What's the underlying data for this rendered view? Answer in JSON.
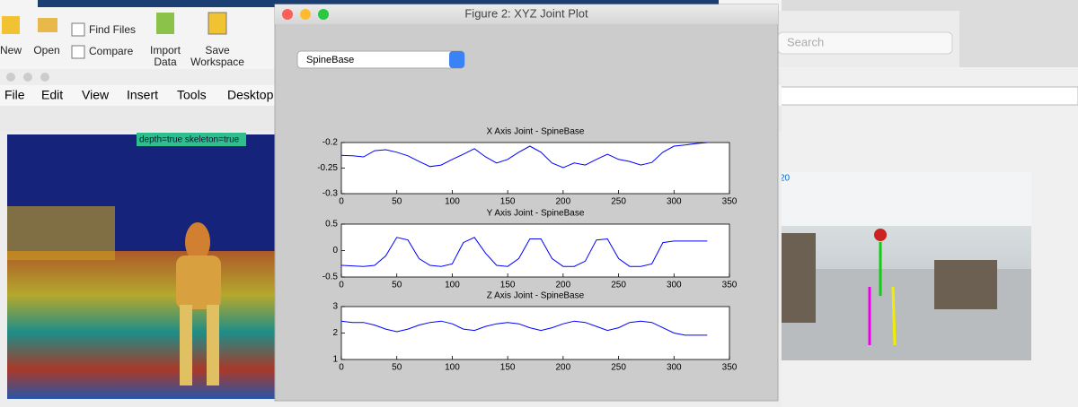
{
  "toolstrip": {
    "new": "New",
    "open": "Open",
    "find_files": "Find Files",
    "compare": "Compare",
    "import_data": [
      "Import",
      "Data"
    ],
    "save_workspace": [
      "Save",
      "Workspace"
    ]
  },
  "menu": [
    "File",
    "Edit",
    "View",
    "Insert",
    "Tools",
    "Desktop"
  ],
  "depth_label": "depth=true skeleton=true",
  "search": "Search",
  "camera_label": "20",
  "figure_title": "Figure 2: XYZ Joint Plot",
  "popup": "SpineBase",
  "chart_data": [
    {
      "type": "line",
      "title": "X Axis Joint - SpineBase",
      "x": [
        0,
        10,
        20,
        30,
        40,
        50,
        60,
        70,
        80,
        90,
        100,
        110,
        120,
        130,
        140,
        150,
        160,
        170,
        180,
        190,
        200,
        210,
        220,
        230,
        240,
        250,
        260,
        270,
        280,
        290,
        300,
        310,
        320,
        330
      ],
      "values": [
        -0.225,
        -0.226,
        -0.228,
        -0.216,
        -0.214,
        -0.219,
        -0.226,
        -0.237,
        -0.247,
        -0.244,
        -0.233,
        -0.223,
        -0.212,
        -0.228,
        -0.24,
        -0.233,
        -0.219,
        -0.207,
        -0.219,
        -0.24,
        -0.249,
        -0.24,
        -0.244,
        -0.233,
        -0.223,
        -0.233,
        -0.237,
        -0.244,
        -0.239,
        -0.219,
        -0.207,
        -0.205,
        -0.202,
        -0.2
      ],
      "color": "#0000ff",
      "xlim": [
        0,
        350
      ],
      "xticks": [
        0,
        50,
        100,
        150,
        200,
        250,
        300,
        350
      ],
      "ylim": [
        -0.3,
        -0.2
      ],
      "yticks": [
        -0.2,
        -0.25,
        -0.3
      ]
    },
    {
      "type": "line",
      "title": "Y Axis Joint - SpineBase",
      "x": [
        0,
        10,
        20,
        30,
        40,
        50,
        60,
        70,
        80,
        90,
        100,
        110,
        120,
        130,
        140,
        150,
        160,
        170,
        180,
        190,
        200,
        210,
        220,
        230,
        240,
        250,
        260,
        270,
        280,
        290,
        300,
        310,
        320,
        330
      ],
      "values": [
        -0.28,
        -0.29,
        -0.3,
        -0.28,
        -0.1,
        0.25,
        0.2,
        -0.15,
        -0.28,
        -0.3,
        -0.25,
        0.15,
        0.25,
        -0.05,
        -0.28,
        -0.3,
        -0.15,
        0.22,
        0.22,
        -0.15,
        -0.3,
        -0.3,
        -0.2,
        0.2,
        0.22,
        -0.15,
        -0.3,
        -0.3,
        -0.25,
        0.15,
        0.18,
        0.18,
        0.18,
        0.18
      ],
      "color": "#0000ff",
      "xlim": [
        0,
        350
      ],
      "xticks": [
        0,
        50,
        100,
        150,
        200,
        250,
        300,
        350
      ],
      "ylim": [
        -0.5,
        0.5
      ],
      "yticks": [
        0.5,
        0,
        -0.5
      ]
    },
    {
      "type": "line",
      "title": "Z Axis Joint - SpineBase",
      "x": [
        0,
        10,
        20,
        30,
        40,
        50,
        60,
        70,
        80,
        90,
        100,
        110,
        120,
        130,
        140,
        150,
        160,
        170,
        180,
        190,
        200,
        210,
        220,
        230,
        240,
        250,
        260,
        270,
        280,
        290,
        300,
        310,
        320,
        330
      ],
      "values": [
        2.45,
        2.4,
        2.4,
        2.3,
        2.15,
        2.05,
        2.15,
        2.3,
        2.4,
        2.45,
        2.35,
        2.15,
        2.1,
        2.25,
        2.35,
        2.4,
        2.35,
        2.2,
        2.1,
        2.2,
        2.35,
        2.45,
        2.4,
        2.25,
        2.1,
        2.2,
        2.4,
        2.45,
        2.4,
        2.2,
        2.0,
        1.92,
        1.92,
        1.92
      ],
      "color": "#0000ff",
      "xlim": [
        0,
        350
      ],
      "xticks": [
        0,
        50,
        100,
        150,
        200,
        250,
        300,
        350
      ],
      "ylim": [
        1,
        3
      ],
      "yticks": [
        3,
        2,
        1
      ]
    }
  ]
}
